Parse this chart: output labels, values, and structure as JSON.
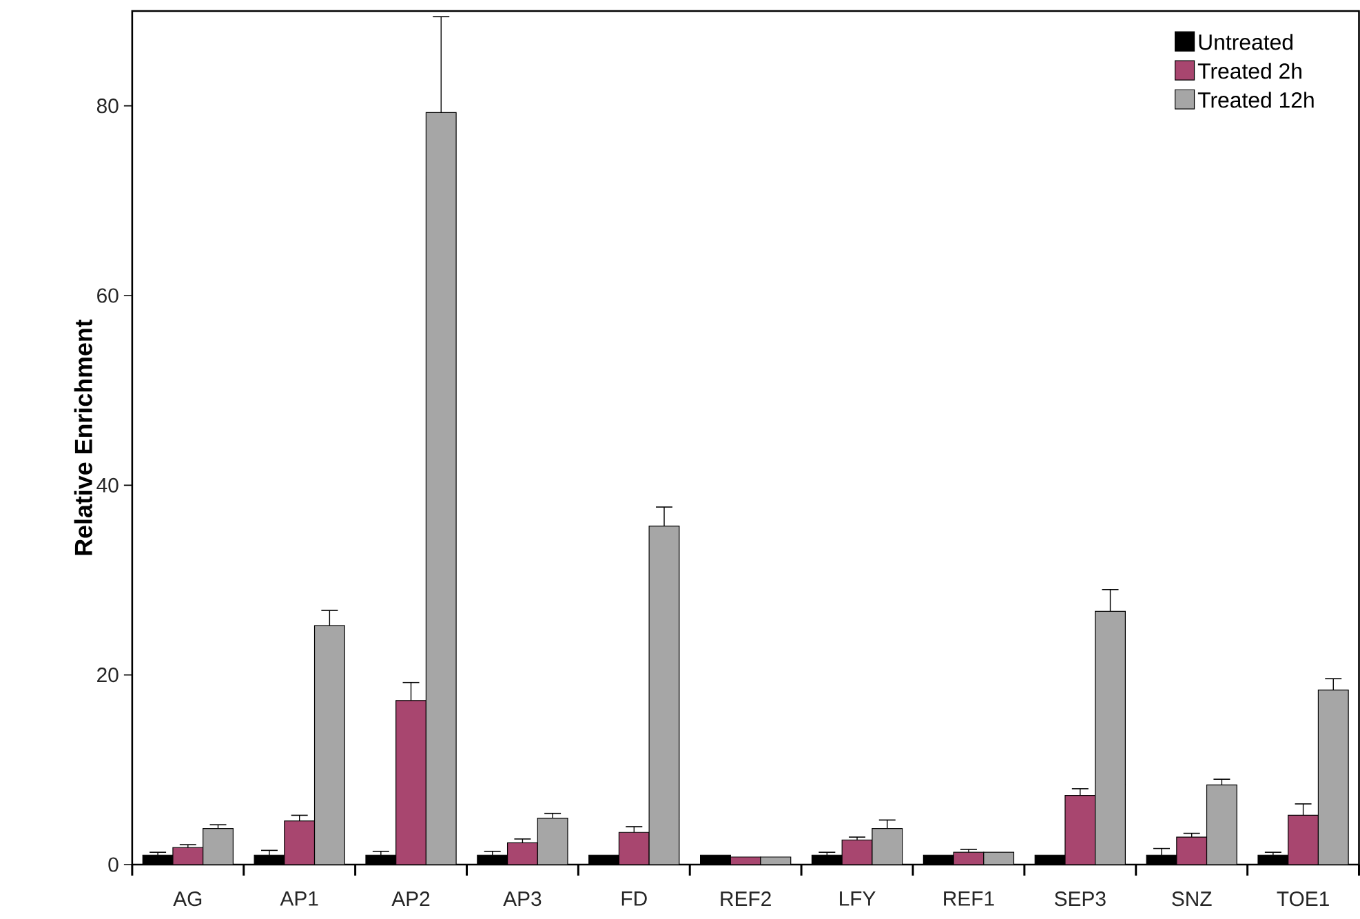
{
  "chart_data": {
    "type": "bar",
    "ylabel": "Relative Enrichment",
    "categories": [
      "AG",
      "AP1",
      "AP2",
      "AP3",
      "FD",
      "REF2",
      "LFY",
      "REF1",
      "SEP3",
      "SNZ",
      "TOE1"
    ],
    "series": [
      {
        "name": "Untreated",
        "color": "#000000",
        "values": [
          1.0,
          1.0,
          1.0,
          1.0,
          1.0,
          1.0,
          1.0,
          1.0,
          1.0,
          1.0,
          1.0
        ],
        "errors": [
          0.3,
          0.5,
          0.4,
          0.4,
          null,
          null,
          0.3,
          null,
          null,
          0.7,
          0.3
        ]
      },
      {
        "name": "Treated 2h",
        "color": "#a8466f",
        "values": [
          1.8,
          4.6,
          17.3,
          2.3,
          3.4,
          0.8,
          2.6,
          1.3,
          7.3,
          2.9,
          5.2
        ],
        "errors": [
          0.3,
          0.6,
          1.9,
          0.4,
          0.6,
          null,
          0.3,
          0.3,
          0.7,
          0.4,
          1.2
        ]
      },
      {
        "name": "Treated 12h",
        "color": "#a6a6a6",
        "values": [
          3.8,
          25.2,
          79.3,
          4.9,
          35.7,
          0.8,
          3.8,
          1.3,
          26.7,
          8.4,
          18.4
        ],
        "errors": [
          0.4,
          1.6,
          10.1,
          0.5,
          2.0,
          null,
          0.9,
          null,
          2.3,
          0.6,
          1.2
        ]
      }
    ],
    "ylim": [
      0,
      90
    ],
    "yticks": [
      0,
      20,
      40,
      60,
      80
    ],
    "grid": false,
    "legend": "top right"
  }
}
